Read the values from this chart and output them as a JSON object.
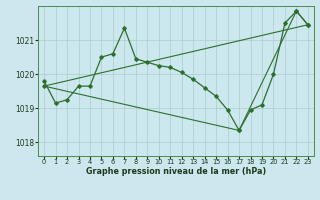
{
  "title": "Graphe pression niveau de la mer (hPa)",
  "background_color": "#cce8ee",
  "grid_color": "#aacccc",
  "line_color": "#2d6e2d",
  "xlim": [
    -0.5,
    23.5
  ],
  "ylim": [
    1017.6,
    1022.0
  ],
  "yticks": [
    1018,
    1019,
    1020,
    1021
  ],
  "xticks": [
    0,
    1,
    2,
    3,
    4,
    5,
    6,
    7,
    8,
    9,
    10,
    11,
    12,
    13,
    14,
    15,
    16,
    17,
    18,
    19,
    20,
    21,
    22,
    23
  ],
  "series": {
    "main": {
      "x": [
        0,
        1,
        2,
        3,
        4,
        5,
        6,
        7,
        8,
        9,
        10,
        11,
        12,
        13,
        14,
        15,
        16,
        17,
        18,
        19,
        20,
        21,
        22,
        23
      ],
      "y": [
        1019.8,
        1019.15,
        1019.25,
        1019.65,
        1019.65,
        1020.5,
        1020.6,
        1021.35,
        1020.45,
        1020.35,
        1020.25,
        1020.2,
        1020.05,
        1019.85,
        1019.6,
        1019.35,
        1018.95,
        1018.35,
        1018.95,
        1019.1,
        1020.0,
        1021.5,
        1021.85,
        1021.45
      ]
    },
    "upper_trend": {
      "x": [
        0,
        23
      ],
      "y": [
        1019.65,
        1021.45
      ]
    },
    "lower_trend": {
      "x": [
        0,
        17,
        22,
        23
      ],
      "y": [
        1019.65,
        1018.35,
        1021.85,
        1021.45
      ]
    }
  }
}
